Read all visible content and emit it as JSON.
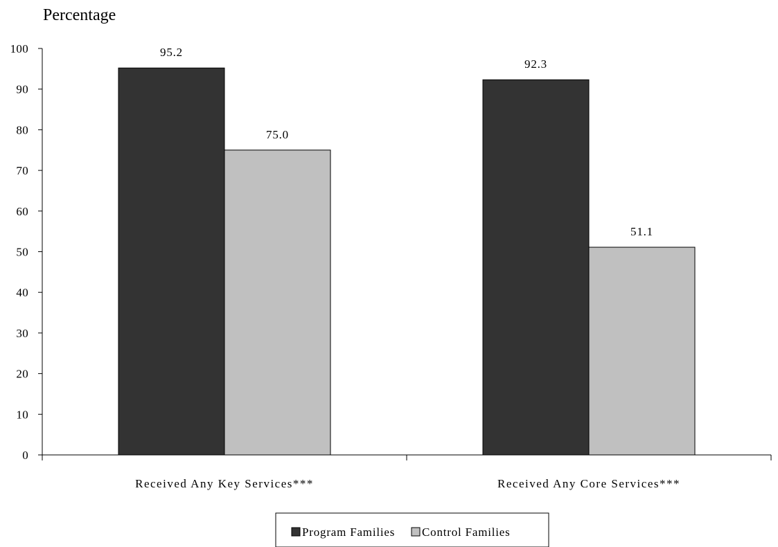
{
  "chart_data": {
    "type": "bar",
    "ylabel": "Percentage",
    "xlabel": "",
    "ylim": [
      0,
      100
    ],
    "yticks": [
      0,
      10,
      20,
      30,
      40,
      50,
      60,
      70,
      80,
      90,
      100
    ],
    "categories": [
      "Received Any Key Services***",
      "Received Any Core Services***"
    ],
    "series": [
      {
        "name": "Program Families",
        "values": [
          95.2,
          92.3
        ],
        "labels": [
          "95.2",
          "92.3"
        ],
        "color": "#333333"
      },
      {
        "name": "Control Families",
        "values": [
          75.0,
          51.1
        ],
        "labels": [
          "75.0",
          "51.1"
        ],
        "color": "#c0c0c0"
      }
    ],
    "legend_position": "bottom-center",
    "grid": false
  }
}
